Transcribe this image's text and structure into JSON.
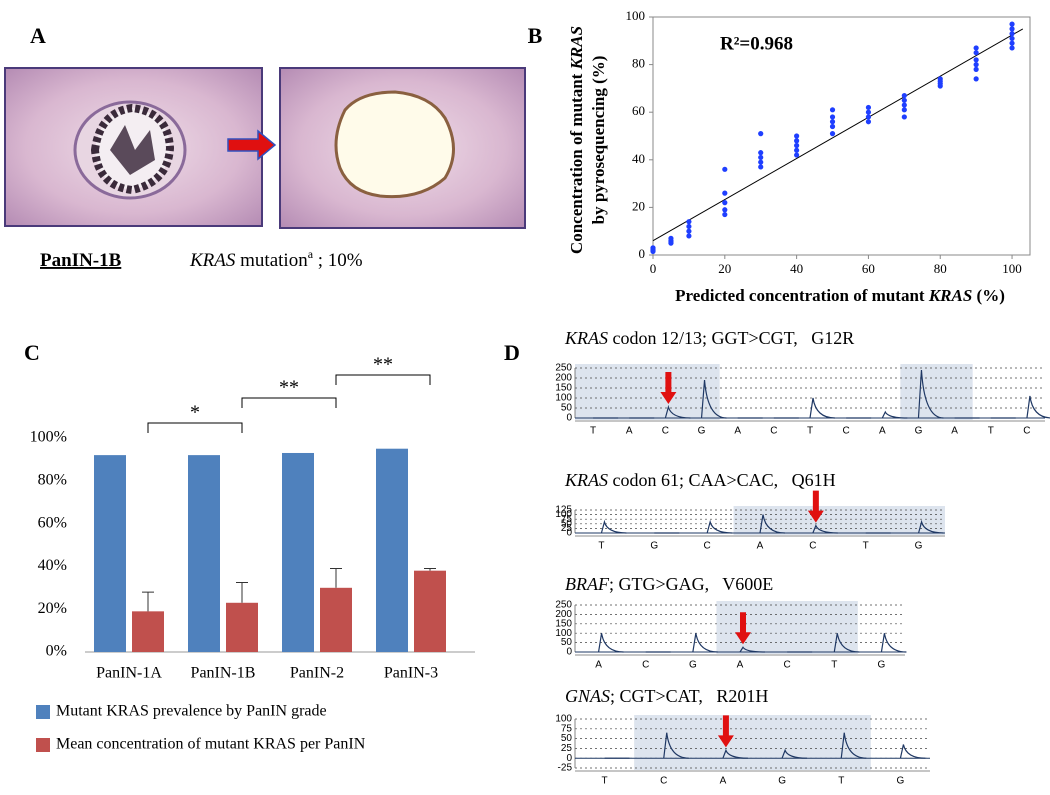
{
  "panel_labels": [
    "A",
    "B",
    "C",
    "D"
  ],
  "panel_a": {
    "caption": "PanIN-1B",
    "gene": "KRAS",
    "text": " mutation",
    "superscript": "a",
    "result": " ; 10%"
  },
  "chart_data": [
    {
      "type": "scatter",
      "annotation": "R²=0.968",
      "color": "#1f3fff",
      "line_color": "#000000",
      "xlabel": [
        "Predicted concentration of mutant ",
        "KRAS",
        " (%)"
      ],
      "ylabel": {
        "line1": [
          "Concentration of mutant ",
          "KRAS"
        ],
        "line2": "by pyrosequencing (%)"
      },
      "x": [
        0,
        0,
        0,
        0,
        5,
        5,
        5,
        5,
        10,
        10,
        10,
        10,
        20,
        20,
        20,
        20,
        20,
        30,
        30,
        30,
        30,
        30,
        40,
        40,
        40,
        40,
        40,
        50,
        50,
        50,
        50,
        50,
        60,
        60,
        60,
        60,
        70,
        70,
        70,
        70,
        70,
        80,
        80,
        80,
        80,
        90,
        90,
        90,
        90,
        90,
        90,
        100,
        100,
        100,
        100,
        100,
        100
      ],
      "values": [
        2,
        3,
        1.5,
        2.5,
        5,
        6,
        7,
        5.5,
        8,
        10,
        12,
        14,
        17,
        19,
        22,
        26,
        36,
        37,
        39,
        41,
        43,
        51,
        42,
        44,
        46,
        48,
        50,
        51,
        54,
        56,
        58,
        61,
        56,
        58,
        60,
        62,
        58,
        61,
        63,
        65,
        67,
        71,
        72,
        73,
        74,
        74,
        78,
        80,
        82,
        85,
        87,
        87,
        89,
        91,
        93,
        95,
        97
      ],
      "fit": {
        "x": [
          0,
          103
        ],
        "y": [
          6,
          95
        ]
      },
      "xlim": [
        0,
        105
      ],
      "ylim": [
        0,
        100
      ],
      "xticks": [
        0,
        20,
        40,
        60,
        80,
        100
      ],
      "yticks": [
        0,
        20,
        40,
        60,
        80,
        100
      ]
    },
    {
      "type": "bar",
      "categories": [
        "PanIN-1A",
        "PanIN-1B",
        "PanIN-2",
        "PanIN-3"
      ],
      "series": [
        {
          "name": "Mutant KRAS prevalence by PanIN grade",
          "color": "#4f81bd",
          "values": [
            92,
            92,
            93,
            95
          ]
        },
        {
          "name": "Mean concentration of mutant KRAS per PanIN",
          "color": "#c0504d",
          "values": [
            19,
            23,
            30,
            38
          ],
          "errors": [
            9,
            9.5,
            9,
            1
          ]
        }
      ],
      "annotations": [
        "*",
        "**",
        "**"
      ],
      "ylim": [
        0,
        100
      ],
      "grid": false,
      "yticks": [
        {
          "value": 0,
          "label": "0%"
        },
        {
          "value": 20,
          "label": "20%"
        },
        {
          "value": 40,
          "label": "40%"
        },
        {
          "value": 60,
          "label": "60%"
        },
        {
          "value": 80,
          "label": "80%"
        },
        {
          "value": 100,
          "label": "100%"
        }
      ]
    },
    {
      "type": "pyrogram",
      "gene": "KRAS",
      "desc": " codon 12/13; GGT>CGT,   G12R",
      "color": "#1f3864",
      "categories": [
        "T",
        "A",
        "C",
        "G",
        "A",
        "C",
        "T",
        "C",
        "A",
        "G",
        "A",
        "T",
        "C"
      ],
      "values": [
        0,
        0,
        55,
        190,
        0,
        0,
        100,
        0,
        30,
        240,
        0,
        0,
        110
      ],
      "ylim": [
        0,
        250
      ],
      "yticks": [
        0,
        50,
        100,
        150,
        200,
        250
      ]
    },
    {
      "type": "pyrogram",
      "gene": "KRAS",
      "desc": " codon 61; CAA>CAC,   Q61H",
      "color": "#1f3864",
      "categories": [
        "T",
        "G",
        "C",
        "A",
        "C",
        "T",
        "G"
      ],
      "values": [
        60,
        0,
        60,
        100,
        40,
        0,
        60
      ],
      "ylim": [
        0,
        125
      ],
      "yticks": [
        0,
        25,
        50,
        75,
        100,
        125
      ]
    },
    {
      "type": "pyrogram",
      "gene": "BRAF",
      "desc": "; GTG>GAG,   V600E",
      "color": "#1f3864",
      "categories": [
        "A",
        "C",
        "G",
        "A",
        "C",
        "T",
        "G"
      ],
      "values": [
        100,
        0,
        100,
        25,
        0,
        100,
        100
      ],
      "ylim": [
        0,
        250
      ],
      "yticks": [
        0,
        50,
        100,
        150,
        200,
        250
      ]
    },
    {
      "type": "pyrogram",
      "gene": "GNAS",
      "desc": "; CGT>CAT,   R201H",
      "color": "#1f3864",
      "categories": [
        "T",
        "C",
        "A",
        "G",
        "T",
        "G"
      ],
      "values": [
        0,
        65,
        20,
        20,
        65,
        35
      ],
      "ylim": [
        -25,
        100
      ],
      "yticks": [
        -25,
        0,
        25,
        50,
        75,
        100
      ]
    }
  ]
}
